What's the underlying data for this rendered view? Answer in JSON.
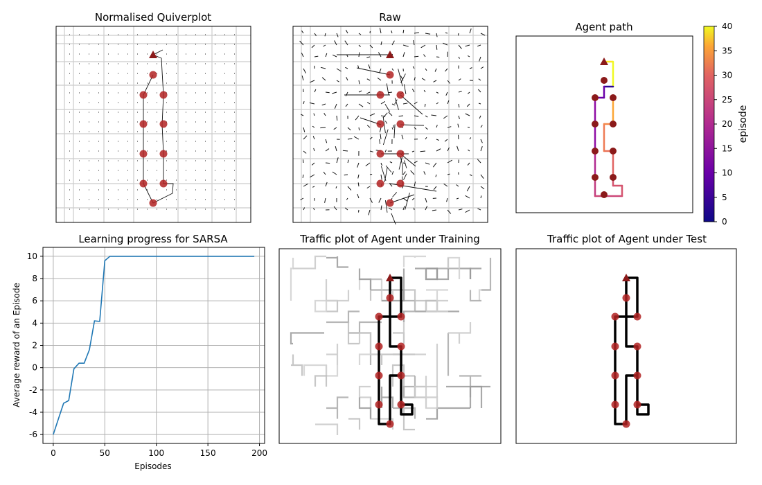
{
  "chart_data": [
    {
      "type": "quiver",
      "title": "Normalised Quiverplot",
      "grid": true,
      "agent_start_marker": "triangle",
      "waypoint_color": "#b22222",
      "waypoints_xy": [
        [
          4.2,
          9.0
        ],
        [
          4.7,
          5.9
        ],
        [
          3.9,
          4.6
        ],
        [
          4.7,
          4.6
        ],
        [
          3.9,
          3.0
        ],
        [
          4.7,
          3.0
        ],
        [
          3.9,
          1.6
        ],
        [
          4.7,
          1.6
        ],
        [
          3.9,
          0.6
        ],
        [
          4.7,
          0.6
        ],
        [
          4.4,
          0.0
        ]
      ]
    },
    {
      "type": "quiver",
      "title": "Raw",
      "grid": true,
      "agent_start_marker": "triangle",
      "waypoint_color": "#b22222"
    },
    {
      "type": "line",
      "title": "Agent path",
      "colorbar": {
        "label": "episode",
        "ticks": [
          "0",
          "5",
          "10",
          "15",
          "20",
          "25",
          "30",
          "35",
          "40"
        ],
        "range": [
          0,
          40
        ],
        "colormap": "plasma"
      }
    },
    {
      "type": "line",
      "title": "Learning progress for SARSA",
      "xlabel": "Episodes",
      "ylabel": "Average reward of an Episode",
      "xlim": [
        -10,
        205
      ],
      "ylim": [
        -6.8,
        10.8
      ],
      "xticks": [
        "0",
        "50",
        "100",
        "150",
        "200"
      ],
      "yticks": [
        "-6",
        "-4",
        "-2",
        "0",
        "2",
        "4",
        "6",
        "8",
        "10"
      ],
      "grid": true,
      "line_color": "#1f77b4",
      "x": [
        0,
        5,
        10,
        15,
        20,
        25,
        30,
        35,
        40,
        45,
        50,
        55,
        60,
        70,
        80,
        90,
        100,
        110,
        120,
        130,
        140,
        150,
        160,
        170,
        180,
        190,
        195
      ],
      "y": [
        -6,
        -4.6,
        -3.2,
        -2.95,
        -0.1,
        0.4,
        0.4,
        1.6,
        4.2,
        4.15,
        9.6,
        10,
        10,
        10,
        10,
        10,
        10,
        10,
        10,
        10,
        10,
        10,
        10,
        10,
        10,
        10,
        10
      ]
    },
    {
      "type": "line",
      "title": "Traffic plot of Agent under Training"
    },
    {
      "type": "line",
      "title": "Traffic plot of Agent under Test"
    }
  ]
}
